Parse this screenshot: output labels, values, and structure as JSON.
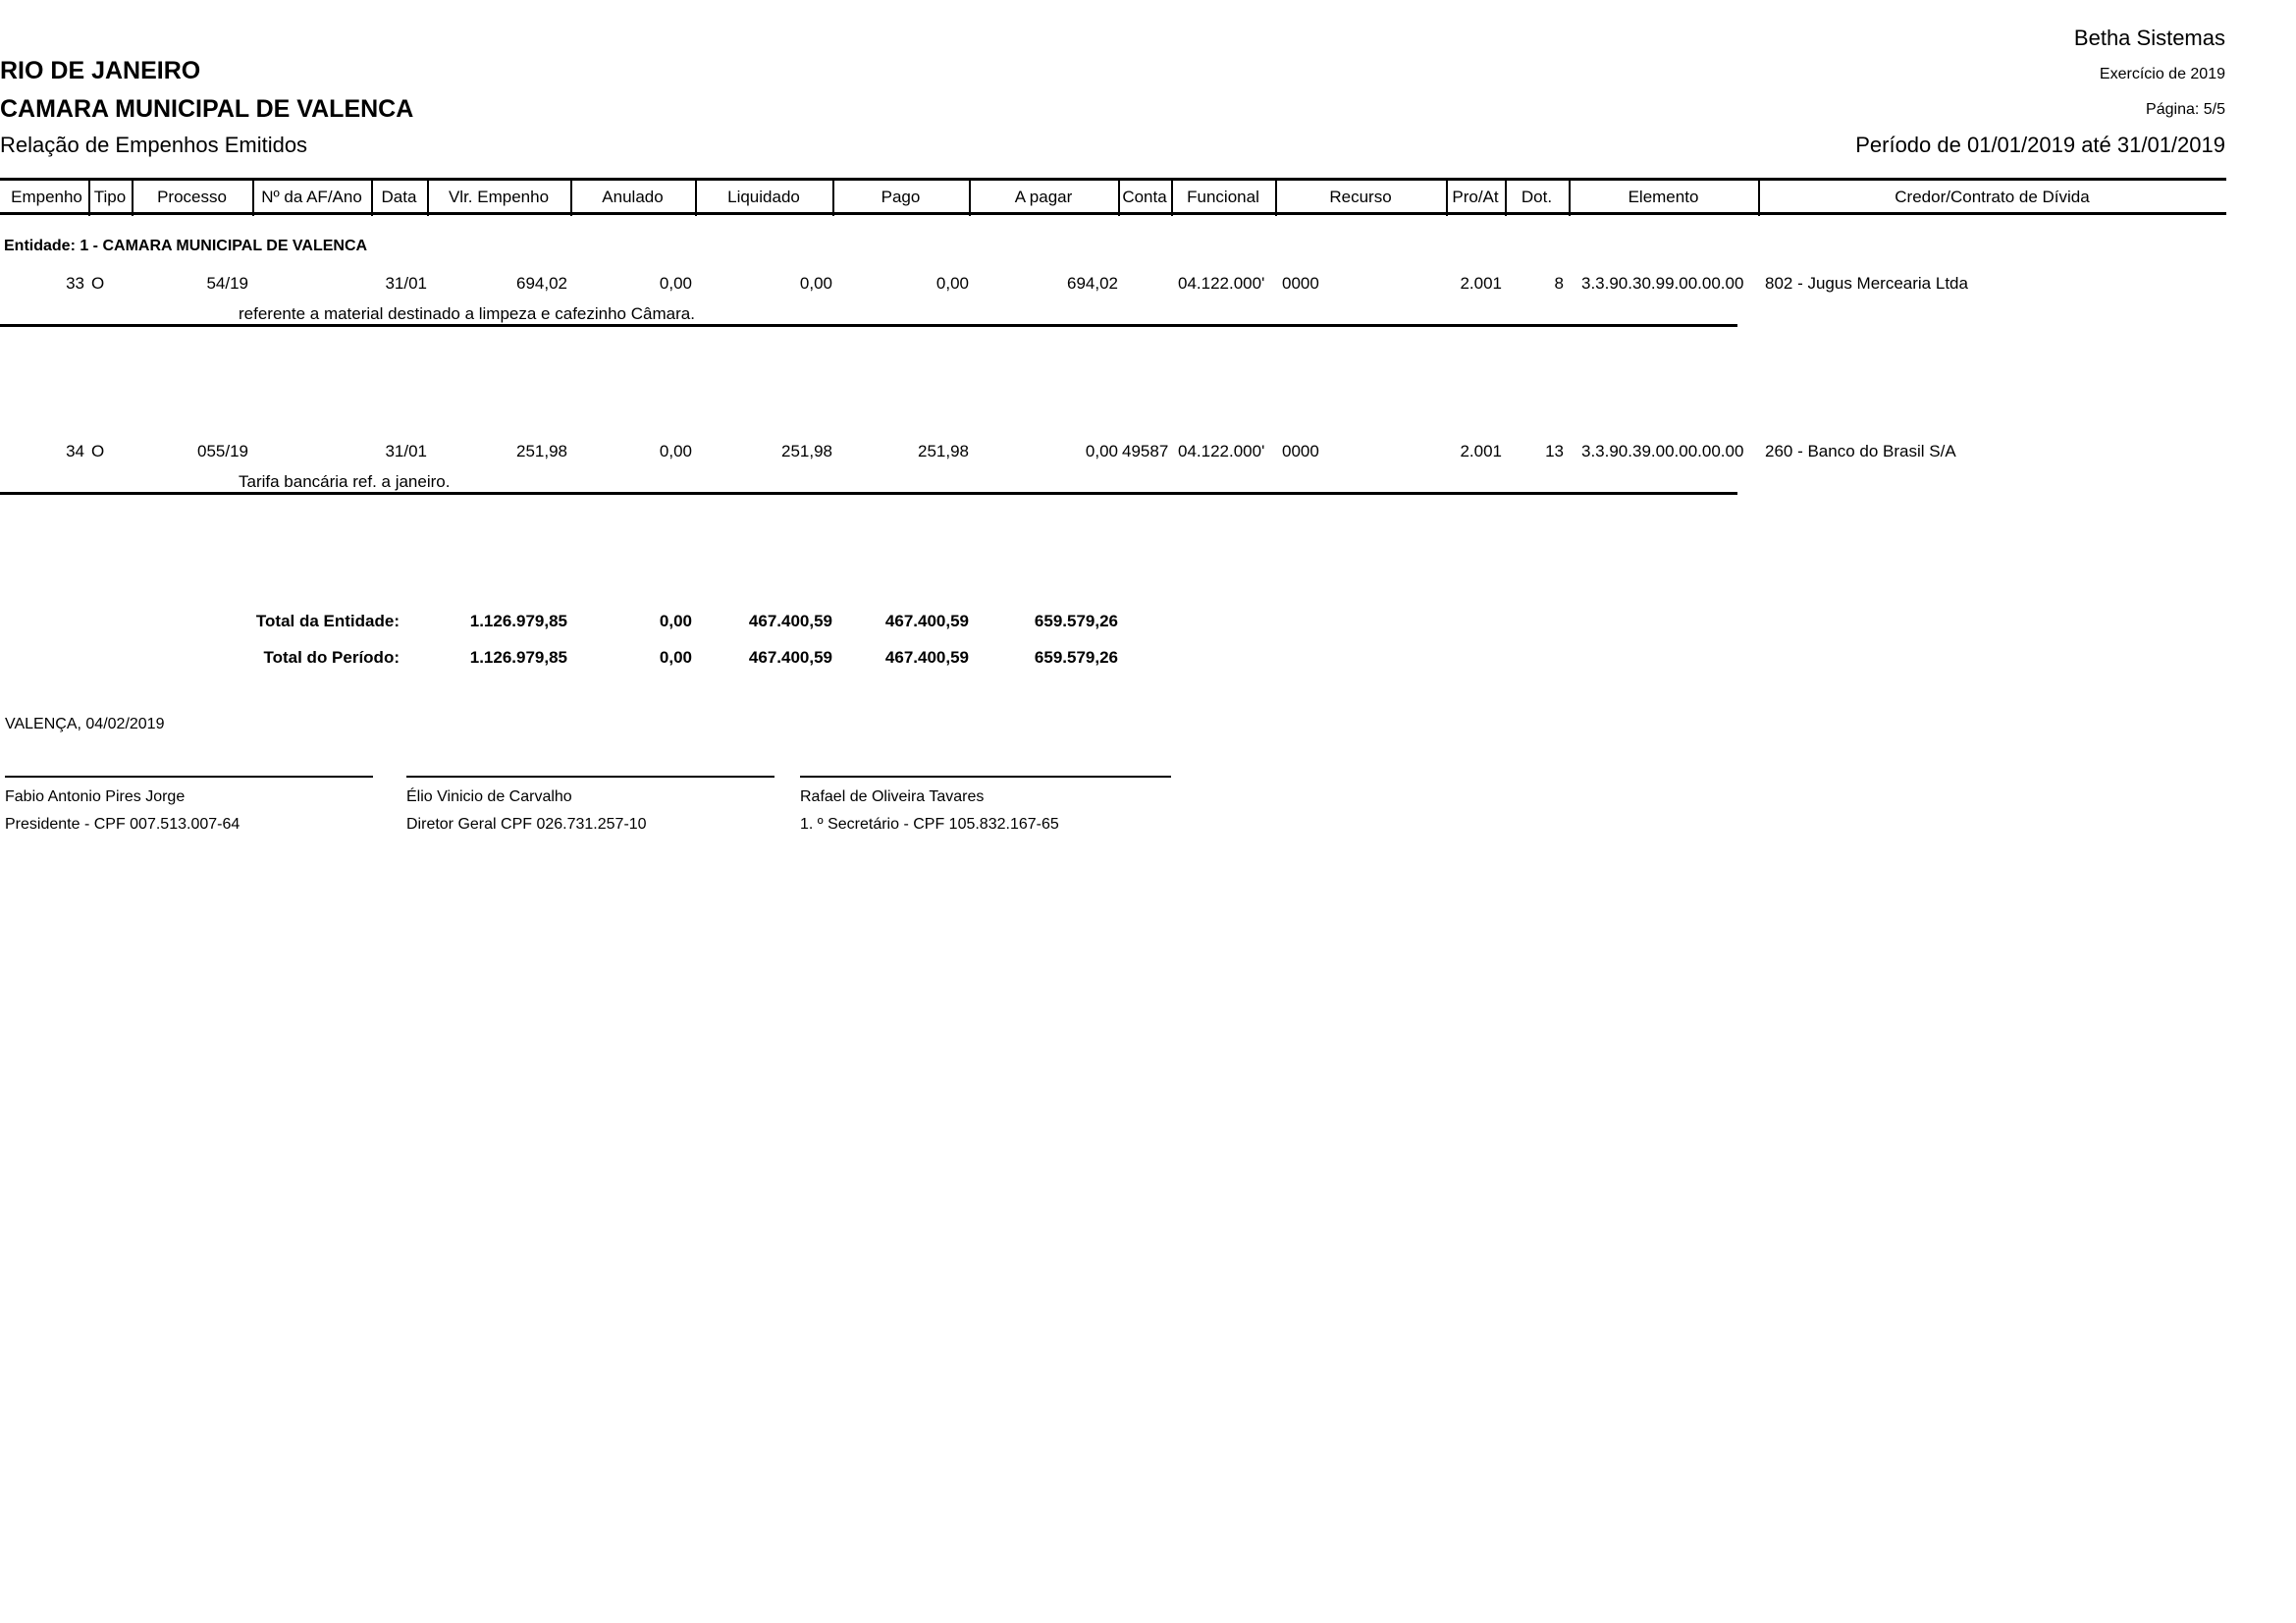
{
  "header": {
    "system": "Betha Sistemas",
    "state": "RIO DE JANEIRO",
    "entity": "CAMARA MUNICIPAL DE VALENCA",
    "report_title": "Relação de Empenhos Emitidos",
    "exercise": "Exercício de 2019",
    "page": "Página: 5/5",
    "period": "Período de 01/01/2019 até 31/01/2019"
  },
  "columns": [
    "Empenho",
    "Tipo",
    "Processo",
    "Nº da AF/Ano",
    "Data",
    "Vlr. Empenho",
    "Anulado",
    "Liquidado",
    "Pago",
    "A pagar",
    "Conta",
    "Funcional",
    "Recurso",
    "Pro/At",
    "Dot.",
    "Elemento",
    "Credor/Contrato de Dívida"
  ],
  "entity_label": "Entidade: 1 - CAMARA MUNICIPAL DE VALENCA",
  "rows": [
    {
      "empenho": "33",
      "tipo": "O",
      "processo": "54/19",
      "af": "",
      "data": "31/01",
      "vlr": "694,02",
      "anulado": "0,00",
      "liquidado": "0,00",
      "pago": "0,00",
      "apagar": "694,02",
      "conta": "",
      "funcional": "04.122.000'",
      "recurso": "0000",
      "proat": "2.001",
      "dot": "8",
      "elemento": "3.3.90.30.99.00.00.00",
      "credor": "802 - Jugus Mercearia Ltda",
      "descricao": "referente a material destinado a limpeza e cafezinho Câmara."
    },
    {
      "empenho": "34",
      "tipo": "O",
      "processo": "055/19",
      "af": "",
      "data": "31/01",
      "vlr": "251,98",
      "anulado": "0,00",
      "liquidado": "251,98",
      "pago": "251,98",
      "apagar": "0,00",
      "conta": "49587",
      "funcional": "04.122.000'",
      "recurso": "0000",
      "proat": "2.001",
      "dot": "13",
      "elemento": "3.3.90.39.00.00.00.00",
      "credor": "260 - Banco do Brasil S/A",
      "descricao": "Tarifa bancária ref. a janeiro."
    }
  ],
  "totals": [
    {
      "label": "Total da Entidade:",
      "vlr": "1.126.979,85",
      "anulado": "0,00",
      "liquidado": "467.400,59",
      "pago": "467.400,59",
      "apagar": "659.579,26"
    },
    {
      "label": "Total do Período:",
      "vlr": "1.126.979,85",
      "anulado": "0,00",
      "liquidado": "467.400,59",
      "pago": "467.400,59",
      "apagar": "659.579,26"
    }
  ],
  "place_date": "VALENÇA,  04/02/2019",
  "signatures": [
    {
      "name": "Fabio Antonio Pires Jorge",
      "role": "Presidente - CPF 007.513.007-64"
    },
    {
      "name": "Élio Vinicio de Carvalho",
      "role": "Diretor Geral  CPF 026.731.257-10"
    },
    {
      "name": "Rafael de Oliveira Tavares",
      "role": "1. º Secretário - CPF 105.832.167-65"
    }
  ]
}
